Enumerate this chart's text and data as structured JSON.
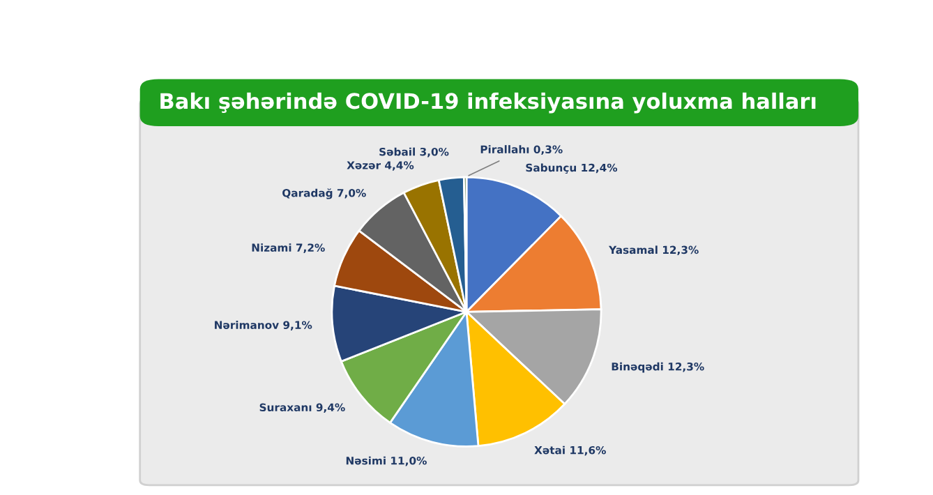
{
  "chart_data": {
    "type": "pie",
    "title": "Bakı şəhərində COVID-19 infeksiyasına yoluxma halları",
    "categories": [
      "Sabunçu",
      "Yasamal",
      "Binəqədi",
      "Xətai",
      "Nəsimi",
      "Suraxanı",
      "Nərimanov",
      "Nizami",
      "Qaradağ",
      "Xəzər",
      "Səbail",
      "Pirallahı"
    ],
    "values": [
      12.4,
      12.3,
      12.3,
      11.6,
      11.0,
      9.4,
      9.1,
      7.2,
      7.0,
      4.4,
      3.0,
      0.3
    ],
    "value_labels": [
      "12,4%",
      "12,3%",
      "12,3%",
      "11,6%",
      "11,0%",
      "9,4%",
      "9,1%",
      "7,2%",
      "7,0%",
      "4,4%",
      "3,0%",
      "0,3%"
    ],
    "colors": [
      "#4472c4",
      "#ed7d31",
      "#a5a5a5",
      "#ffc000",
      "#5b9bd5",
      "#70ad47",
      "#264478",
      "#9e480e",
      "#636363",
      "#997300",
      "#255e91",
      "#43682b"
    ],
    "legend": false
  }
}
